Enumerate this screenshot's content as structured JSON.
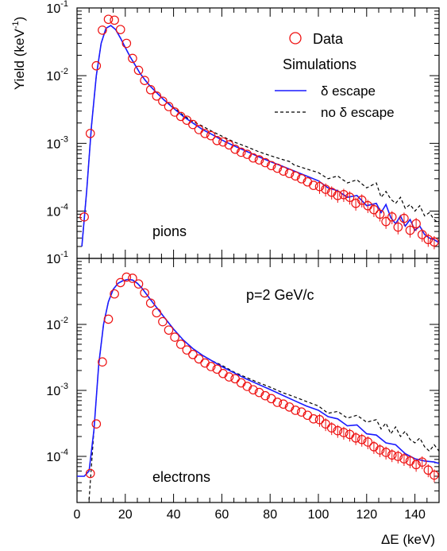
{
  "ylabel": "Yield (keV",
  "ylabel_sup": "-1",
  "ylabel_end": ")",
  "xlabel": "ΔE (keV)",
  "x_ticks": [
    "0",
    "20",
    "40",
    "60",
    "80",
    "100",
    "120",
    "140"
  ],
  "y_tick_mantissa": "10",
  "y_ticks_exp": [
    "-1",
    "-2",
    "-3",
    "-4"
  ],
  "legend": {
    "data": "Data",
    "header": "Simulations",
    "delta_escape": "δ escape",
    "no_delta_escape": "no δ escape"
  },
  "annotation": "p=2 GeV/c",
  "colors": {
    "data": "#ee1111",
    "delta_escape": "#1a1aff",
    "no_delta_escape": "#000000"
  },
  "chart_data": [
    {
      "type": "scatter",
      "panel_label": "pions",
      "xlim": [
        0,
        150
      ],
      "ylim": [
        2e-05,
        0.1
      ],
      "y_scale": "log",
      "grid": false,
      "series": [
        {
          "name": "Data",
          "x": [
            3,
            5.5,
            8,
            10.5,
            13,
            15.5,
            18,
            20.5,
            23,
            25.5,
            28,
            30.5,
            33,
            35.5,
            38,
            40.5,
            43,
            45.5,
            48,
            50.5,
            53,
            55.5,
            58,
            60.5,
            63,
            65.5,
            68,
            70.5,
            73,
            75.5,
            78,
            80.5,
            83,
            85.5,
            88,
            90.5,
            93,
            95.5,
            98,
            100.5,
            103,
            105.5,
            108,
            110.5,
            113,
            115.5,
            118,
            120.5,
            123,
            125.5,
            128,
            130.5,
            133,
            135.5,
            138,
            140.5,
            143,
            145.5,
            148
          ],
          "y": [
            8.2e-05,
            0.0014,
            0.014,
            0.047,
            0.068,
            0.066,
            0.048,
            0.03,
            0.018,
            0.012,
            0.0085,
            0.0062,
            0.005,
            0.0042,
            0.0035,
            0.0029,
            0.0025,
            0.0022,
            0.0019,
            0.0016,
            0.0014,
            0.0013,
            0.0011,
            0.00105,
            0.00095,
            0.00082,
            0.00074,
            0.00069,
            0.00061,
            0.00057,
            0.00052,
            0.00047,
            0.00043,
            0.00039,
            0.00036,
            0.00033,
            0.0003,
            0.00027,
            0.00024,
            0.00023,
            0.00021,
            0.00019,
            0.00017,
            0.000175,
            0.00016,
            0.00013,
            0.000145,
            0.00012,
            0.000105,
            9e-05,
            7e-05,
            8.2e-05,
            5.8e-05,
            7.8e-05,
            5.2e-05,
            6.5e-05,
            4.5e-05,
            3.8e-05,
            3.5e-05
          ]
        },
        {
          "name": "δ escape",
          "x": [
            2,
            4,
            6,
            8,
            10,
            12,
            14,
            16,
            18,
            20,
            22,
            24,
            26,
            28,
            30,
            33,
            36,
            40,
            44,
            48,
            52,
            56,
            60,
            65,
            70,
            75,
            80,
            85,
            90,
            95,
            100,
            104,
            108,
            112,
            116,
            120,
            124,
            126,
            128,
            130,
            132,
            134,
            136,
            138,
            140,
            142,
            144,
            146,
            148,
            150
          ],
          "y": [
            3e-05,
            0.0002,
            0.0018,
            0.01,
            0.03,
            0.05,
            0.055,
            0.048,
            0.036,
            0.026,
            0.019,
            0.0145,
            0.011,
            0.0088,
            0.0072,
            0.0056,
            0.0044,
            0.0033,
            0.0025,
            0.002,
            0.0016,
            0.00135,
            0.00112,
            0.00092,
            0.00077,
            0.00064,
            0.00054,
            0.00046,
            0.00039,
            0.00033,
            0.00028,
            0.00022,
            0.0002,
            0.00016,
            0.00017,
            0.00012,
            0.00013,
            9.5e-05,
            0.000125,
            8e-05,
            6.5e-05,
            8.5e-05,
            6e-05,
            7.5e-05,
            5.2e-05,
            6e-05,
            4.5e-05,
            4e-05,
            3.8e-05,
            3.4e-05
          ]
        },
        {
          "name": "no δ escape",
          "x": [
            2,
            4,
            6,
            8,
            10,
            12,
            14,
            16,
            18,
            20,
            22,
            24,
            26,
            28,
            30,
            33,
            36,
            40,
            44,
            48,
            52,
            56,
            60,
            65,
            70,
            75,
            80,
            85,
            88,
            90,
            95,
            100,
            104,
            108,
            112,
            116,
            120,
            124,
            126,
            128,
            130,
            132,
            134,
            136,
            138,
            140,
            142,
            144,
            146,
            148,
            150
          ],
          "y": [
            3e-05,
            0.0002,
            0.0018,
            0.01,
            0.03,
            0.05,
            0.055,
            0.048,
            0.036,
            0.026,
            0.019,
            0.0145,
            0.011,
            0.0088,
            0.0072,
            0.0056,
            0.0044,
            0.0034,
            0.0026,
            0.0021,
            0.0018,
            0.0015,
            0.00128,
            0.00105,
            0.0009,
            0.00076,
            0.00066,
            0.00058,
            0.00054,
            0.00048,
            0.00042,
            0.00037,
            0.0003,
            0.00033,
            0.00026,
            0.00029,
            0.00022,
            0.00026,
            0.00016,
            0.000195,
            0.00015,
            0.00013,
            0.00016,
            0.00011,
            0.000125,
            0.0001,
            0.00012,
            8.5e-05,
            9.5e-05,
            7.5e-05,
            6.5e-05
          ]
        }
      ]
    },
    {
      "type": "scatter",
      "panel_label": "electrons",
      "xlim": [
        0,
        150
      ],
      "ylim": [
        2e-05,
        0.1
      ],
      "y_scale": "log",
      "grid": false,
      "series": [
        {
          "name": "Data",
          "x": [
            5.5,
            8,
            10.5,
            13,
            15.5,
            18,
            20.5,
            23,
            25.5,
            28,
            30.5,
            33,
            35.5,
            38,
            40.5,
            43,
            45.5,
            48,
            50.5,
            53,
            55.5,
            58,
            60.5,
            63,
            65.5,
            68,
            70.5,
            73,
            75.5,
            78,
            80.5,
            83,
            85.5,
            88,
            90.5,
            93,
            95.5,
            98,
            100.5,
            103,
            105.5,
            108,
            110.5,
            113,
            115.5,
            118,
            120.5,
            123,
            125.5,
            128,
            130.5,
            133,
            135.5,
            138,
            140.5,
            143,
            145.5,
            148
          ],
          "y": [
            5.5e-05,
            0.00031,
            0.0027,
            0.012,
            0.029,
            0.043,
            0.052,
            0.05,
            0.041,
            0.03,
            0.021,
            0.015,
            0.011,
            0.0082,
            0.0064,
            0.005,
            0.0041,
            0.0035,
            0.003,
            0.0026,
            0.0023,
            0.0021,
            0.0018,
            0.0016,
            0.0015,
            0.0013,
            0.00115,
            0.00102,
            0.00093,
            0.00083,
            0.00075,
            0.00066,
            0.00062,
            0.00056,
            0.0005,
            0.00047,
            0.00042,
            0.00037,
            0.00036,
            0.00031,
            0.00027,
            0.000245,
            0.00023,
            0.000215,
            0.00019,
            0.00018,
            0.000165,
            0.00014,
            0.000125,
            0.000115,
            0.000105,
            0.0001,
            9.2e-05,
            8.5e-05,
            7.5e-05,
            8.2e-05,
            6.2e-05,
            5.2e-05
          ]
        },
        {
          "name": "δ escape",
          "x": [
            0,
            3,
            5,
            7,
            9,
            11,
            13,
            15,
            17,
            19,
            21,
            23,
            25,
            27,
            30,
            33,
            36,
            40,
            44,
            48,
            52,
            56,
            60,
            65,
            70,
            75,
            80,
            85,
            90,
            95,
            100,
            104,
            108,
            112,
            116,
            120,
            124,
            128,
            132,
            136,
            140,
            144,
            148,
            150
          ],
          "y": [
            5e-05,
            5e-05,
            6e-05,
            0.00025,
            0.0025,
            0.01,
            0.022,
            0.034,
            0.042,
            0.046,
            0.048,
            0.047,
            0.042,
            0.035,
            0.025,
            0.018,
            0.013,
            0.0085,
            0.0058,
            0.0043,
            0.0034,
            0.0028,
            0.0023,
            0.00185,
            0.0015,
            0.00124,
            0.00103,
            0.00085,
            0.0007,
            0.00058,
            0.0005,
            0.0004,
            0.00037,
            0.00029,
            0.0003,
            0.00022,
            0.00021,
            0.00016,
            0.00015,
            0.00011,
            9.2e-05,
            8.5e-05,
            8.2e-05,
            7.8e-05
          ]
        },
        {
          "name": "no δ escape",
          "x": [
            5,
            7,
            9,
            11,
            13,
            15,
            17,
            19,
            21,
            23,
            25,
            27,
            30,
            33,
            36,
            40,
            44,
            48,
            52,
            56,
            60,
            65,
            70,
            75,
            80,
            85,
            90,
            95,
            100,
            104,
            108,
            112,
            116,
            120,
            124,
            126,
            128,
            130,
            132,
            134,
            136,
            138,
            140,
            142,
            144,
            146,
            148,
            150
          ],
          "y": [
            2.2e-05,
            0.00025,
            0.0025,
            0.01,
            0.022,
            0.034,
            0.042,
            0.046,
            0.048,
            0.047,
            0.042,
            0.035,
            0.025,
            0.018,
            0.013,
            0.0085,
            0.0058,
            0.0043,
            0.0034,
            0.0028,
            0.0024,
            0.0019,
            0.00158,
            0.00132,
            0.00112,
            0.00093,
            0.0008,
            0.00068,
            0.00058,
            0.00045,
            0.00048,
            0.00038,
            0.00042,
            0.00033,
            0.00036,
            0.00026,
            0.00032,
            0.00022,
            0.00028,
            0.0002,
            0.00024,
            0.00018,
            0.00016,
            0.00019,
            0.00014,
            0.00012,
            0.00015,
            0.00012
          ]
        }
      ]
    }
  ]
}
